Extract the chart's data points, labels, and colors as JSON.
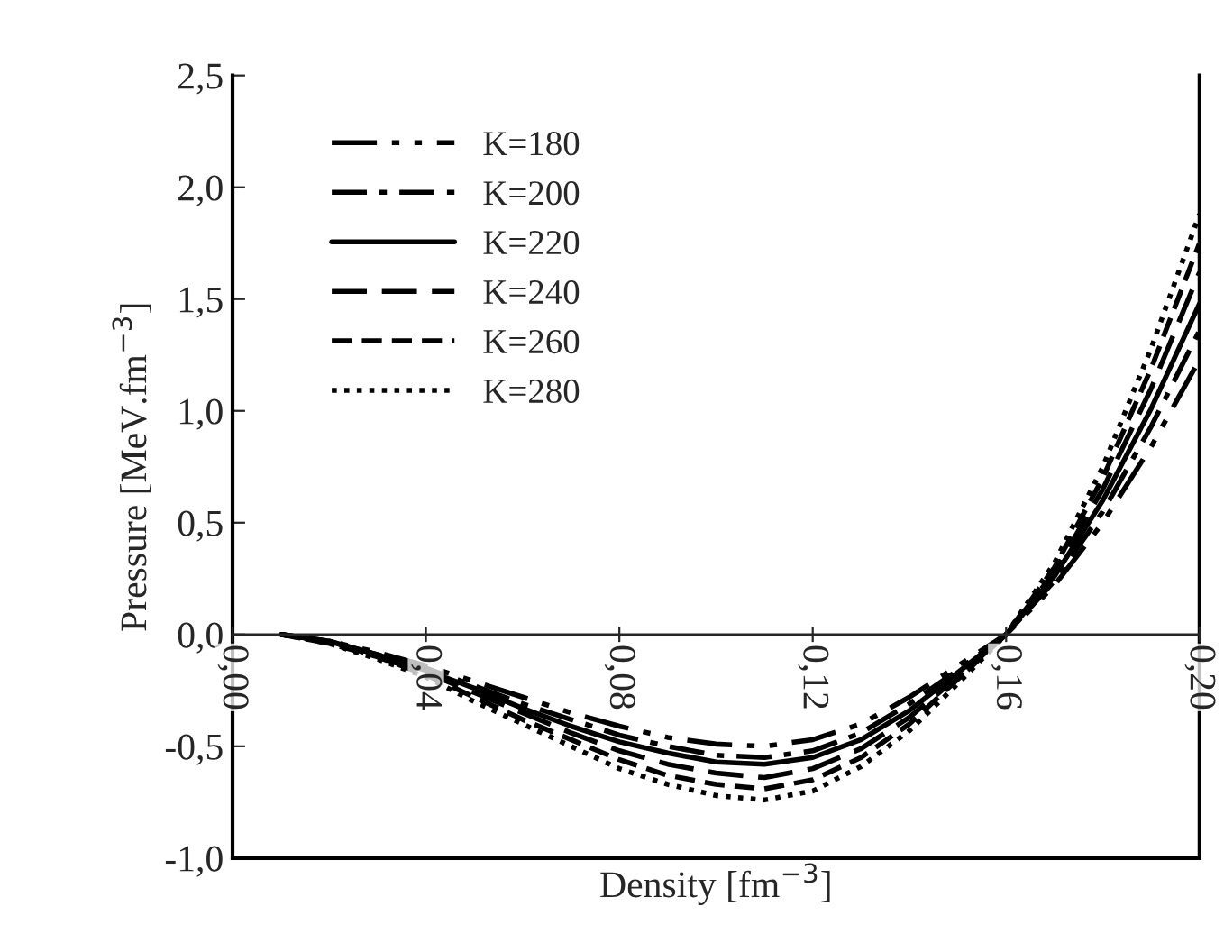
{
  "chart_data": {
    "type": "line",
    "xlabel": "Density [fm$^{−3}$]",
    "ylabel": "Pressure [MeV.fm$^{−3}$]",
    "x": [
      0.01,
      0.02,
      0.03,
      0.04,
      0.05,
      0.06,
      0.07,
      0.08,
      0.09,
      0.1,
      0.11,
      0.12,
      0.13,
      0.14,
      0.15,
      0.16,
      0.17,
      0.18,
      0.19,
      0.2
    ],
    "series": [
      {
        "name": "K=180",
        "color": "#000000",
        "line_style": "dashdotdot",
        "values": [
          0,
          -0.03,
          -0.08,
          -0.14,
          -0.21,
          -0.28,
          -0.35,
          -0.41,
          -0.46,
          -0.49,
          -0.5,
          -0.47,
          -0.4,
          -0.28,
          -0.14,
          0,
          0.22,
          0.5,
          0.84,
          1.23
        ]
      },
      {
        "name": "K=200",
        "color": "#000000",
        "line_style": "dashdot",
        "values": [
          0,
          -0.03,
          -0.09,
          -0.15,
          -0.23,
          -0.31,
          -0.38,
          -0.45,
          -0.5,
          -0.54,
          -0.55,
          -0.52,
          -0.44,
          -0.31,
          -0.16,
          0,
          0.24,
          0.55,
          0.93,
          1.36
        ]
      },
      {
        "name": "K=220",
        "color": "#000000",
        "line_style": "solid",
        "values": [
          0,
          -0.03,
          -0.09,
          -0.16,
          -0.24,
          -0.33,
          -0.41,
          -0.48,
          -0.53,
          -0.57,
          -0.58,
          -0.55,
          -0.47,
          -0.34,
          -0.17,
          0,
          0.26,
          0.6,
          1.01,
          1.48
        ]
      },
      {
        "name": "K=240",
        "color": "#000000",
        "line_style": "longdash",
        "values": [
          0,
          -0.03,
          -0.1,
          -0.17,
          -0.26,
          -0.35,
          -0.44,
          -0.52,
          -0.58,
          -0.62,
          -0.64,
          -0.6,
          -0.51,
          -0.37,
          -0.19,
          0,
          0.28,
          0.65,
          1.1,
          1.62
        ]
      },
      {
        "name": "K=260",
        "color": "#000000",
        "line_style": "dashed",
        "values": [
          0,
          -0.04,
          -0.1,
          -0.18,
          -0.28,
          -0.38,
          -0.47,
          -0.56,
          -0.63,
          -0.67,
          -0.69,
          -0.65,
          -0.55,
          -0.4,
          -0.2,
          0,
          0.3,
          0.7,
          1.19,
          1.75
        ]
      },
      {
        "name": "K=280",
        "color": "#000000",
        "line_style": "dotted",
        "values": [
          0,
          -0.04,
          -0.11,
          -0.19,
          -0.3,
          -0.4,
          -0.5,
          -0.6,
          -0.67,
          -0.72,
          -0.74,
          -0.7,
          -0.59,
          -0.43,
          -0.22,
          0,
          0.32,
          0.75,
          1.28,
          1.88
        ]
      }
    ],
    "xlim": [
      0,
      0.2
    ],
    "xticks": [
      {
        "value": 0,
        "label": "0,00"
      },
      {
        "value": 0.04,
        "label": "0,04"
      },
      {
        "value": 0.08,
        "label": "0,08"
      },
      {
        "value": 0.12,
        "label": "0,12"
      },
      {
        "value": 0.16,
        "label": "0,16"
      },
      {
        "value": 0.2,
        "label": "0,20"
      }
    ],
    "ylim": [
      -1,
      2.5
    ],
    "yticks": [
      {
        "value": -1,
        "label": "-1,0"
      },
      {
        "value": -0.5,
        "label": "-0,5"
      },
      {
        "value": 0,
        "label": "0,0"
      },
      {
        "value": 0.5,
        "label": "0,5"
      },
      {
        "value": 1,
        "label": "1,0"
      },
      {
        "value": 1.5,
        "label": "1,5"
      },
      {
        "value": 2,
        "label": "2,0"
      },
      {
        "value": 2.5,
        "label": "2,5"
      }
    ],
    "legend": "top left",
    "grid": false
  }
}
